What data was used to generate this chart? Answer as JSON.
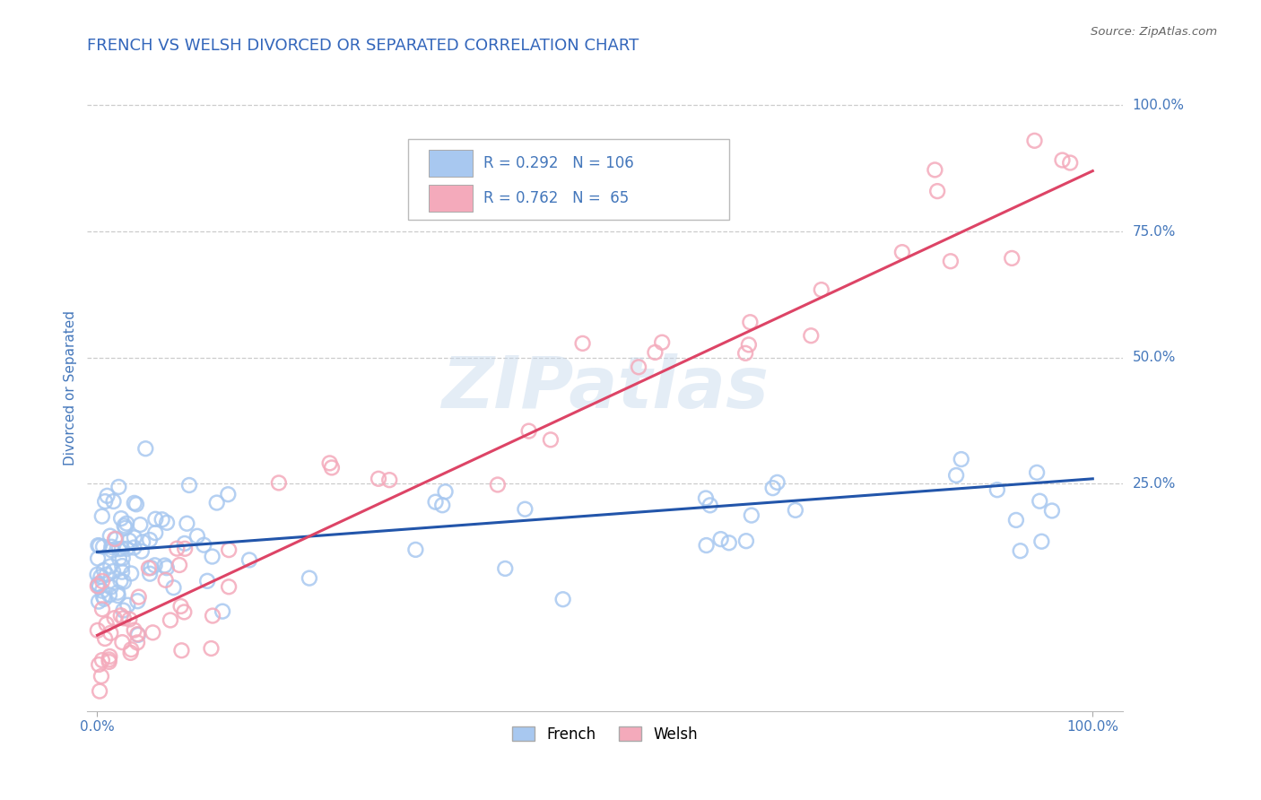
{
  "title": "FRENCH VS WELSH DIVORCED OR SEPARATED CORRELATION CHART",
  "source": "Source: ZipAtlas.com",
  "ylabel": "Divorced or Separated",
  "legend_french": "French",
  "legend_welsh": "Welsh",
  "french_R": "0.292",
  "french_N": "106",
  "welsh_R": "0.762",
  "welsh_N": "65",
  "french_color": "#A8C8F0",
  "welsh_color": "#F4AABB",
  "french_line_color": "#2255AA",
  "welsh_line_color": "#DD4466",
  "background_color": "#FFFFFF",
  "watermark": "ZIPatlas",
  "title_color": "#3366BB",
  "axis_label_color": "#4477BB",
  "tick_label_color": "#4477BB",
  "grid_color": "#CCCCCC",
  "french_slope": 0.145,
  "french_intercept": 0.115,
  "welsh_slope": 0.92,
  "welsh_intercept": -0.05,
  "french_seed": 12,
  "welsh_seed": 99
}
